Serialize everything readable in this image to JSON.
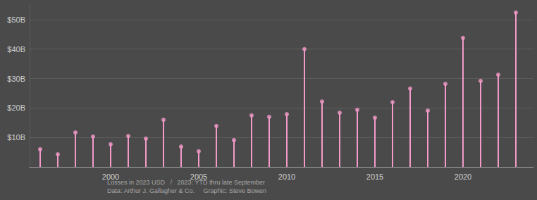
{
  "chart_data": {
    "type": "lollipop",
    "x": [
      1996,
      1997,
      1998,
      1999,
      2000,
      2001,
      2002,
      2003,
      2004,
      2005,
      2006,
      2007,
      2008,
      2009,
      2010,
      2011,
      2012,
      2013,
      2014,
      2015,
      2016,
      2017,
      2018,
      2019,
      2020,
      2021,
      2022,
      2023
    ],
    "values": [
      6.0,
      4.3,
      11.7,
      10.3,
      7.7,
      10.5,
      9.6,
      16.0,
      6.9,
      5.3,
      13.9,
      9.1,
      17.5,
      17.0,
      17.9,
      40.0,
      22.2,
      18.4,
      19.4,
      16.7,
      22.0,
      26.6,
      19.1,
      28.2,
      43.8,
      29.2,
      31.3,
      52.4
    ],
    "color": "#f49ac9",
    "xlim": [
      1995.4,
      2024
    ],
    "xticks": [
      2000,
      2005,
      2010,
      2015,
      2020
    ],
    "ylim": [
      0,
      55
    ],
    "yticks": [
      {
        "value": 10,
        "label": "$10B"
      },
      {
        "value": 20,
        "label": "$20B"
      },
      {
        "value": 30,
        "label": "$30B"
      },
      {
        "value": 40,
        "label": "$40B"
      },
      {
        "value": 50,
        "label": "$50B"
      }
    ],
    "grid": true,
    "annotations": [
      "Losses in 2023 USD   /   2023: YTD thru late September",
      "Data: Arthur J. Gallagher & Co.     Graphic: Steve Bowen"
    ]
  }
}
